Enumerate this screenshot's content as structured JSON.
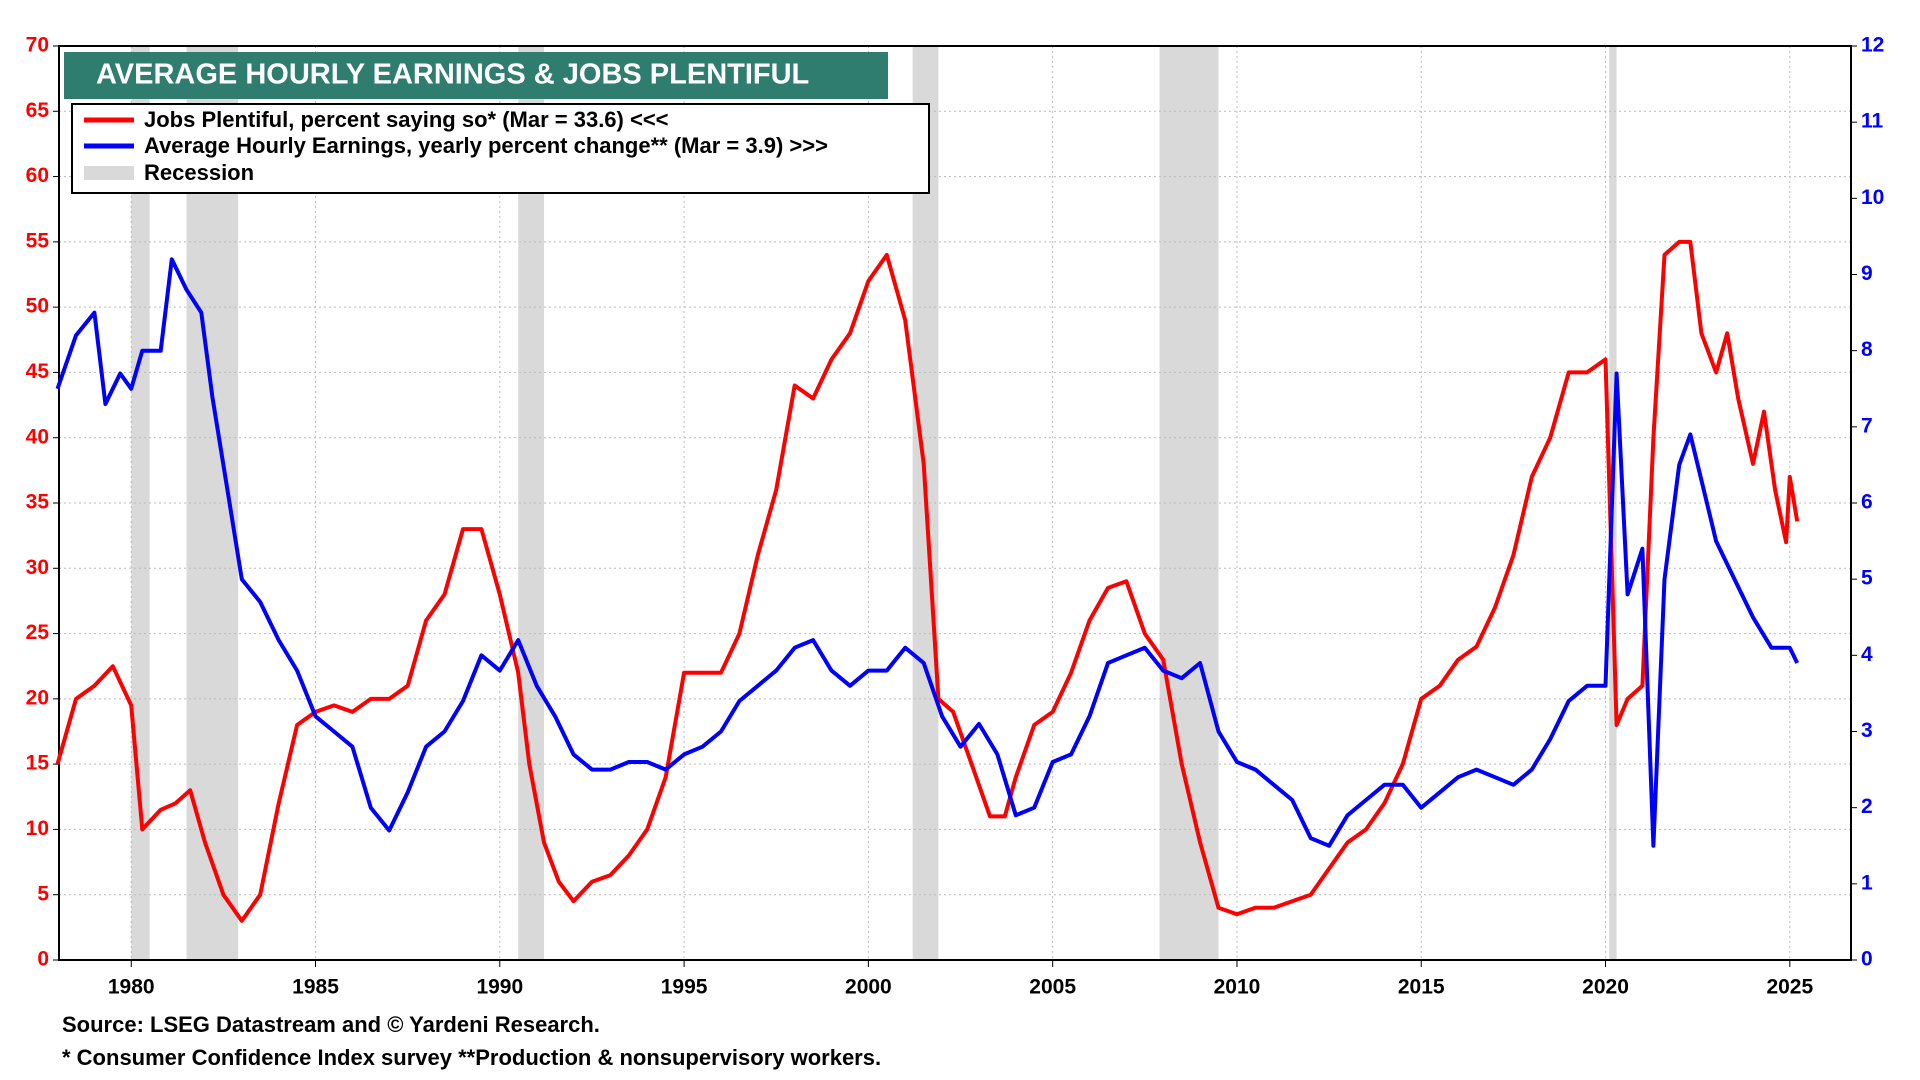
{
  "chart_data": {
    "type": "line",
    "title": "AVERAGE HOURLY EARNINGS & JOBS PLENTIFUL",
    "source": "Source: LSEG Datastream and © Yardeni Research.",
    "footnote": "* Consumer Confidence Index survey **Production & nonsupervisory workers.",
    "recession_label": "Recession",
    "recession_color": "#d9d9d9",
    "recessions": [
      [
        1980.0,
        1980.5
      ],
      [
        1981.5,
        1982.9
      ],
      [
        1990.5,
        1991.2
      ],
      [
        2001.2,
        2001.9
      ],
      [
        2007.9,
        2009.5
      ],
      [
        2020.1,
        2020.3
      ]
    ],
    "xlim": [
      1978.04,
      2026.66
    ],
    "xticks": [
      1980,
      1985,
      1990,
      1995,
      2000,
      2005,
      2010,
      2015,
      2020,
      2025
    ],
    "ylim": [
      0,
      70
    ],
    "yticks": [
      0,
      5,
      10,
      15,
      20,
      25,
      30,
      35,
      40,
      45,
      50,
      55,
      60,
      65,
      70
    ],
    "y2lim": [
      0,
      12
    ],
    "y2ticks": [
      0,
      1,
      2,
      3,
      4,
      5,
      6,
      7,
      8,
      9,
      10,
      11,
      12
    ],
    "grid": true,
    "legend": "upper left",
    "series": [
      {
        "name": "Jobs Plentiful, percent saying so* (Mar = 33.6) <<<",
        "color": "#ff0000",
        "axis": "y",
        "x": [
          1978.0,
          1978.5,
          1979.0,
          1979.5,
          1980.0,
          1980.3,
          1980.8,
          1981.2,
          1981.6,
          1982.0,
          1982.5,
          1983.0,
          1983.5,
          1984.0,
          1984.5,
          1985.0,
          1985.5,
          1986.0,
          1986.5,
          1987.0,
          1987.5,
          1988.0,
          1988.5,
          1989.0,
          1989.5,
          1990.0,
          1990.5,
          1990.8,
          1991.2,
          1991.6,
          1992.0,
          1992.5,
          1993.0,
          1993.5,
          1994.0,
          1994.5,
          1995.0,
          1995.5,
          1996.0,
          1996.5,
          1997.0,
          1997.5,
          1998.0,
          1998.5,
          1999.0,
          1999.5,
          2000.0,
          2000.5,
          2001.0,
          2001.5,
          2001.9,
          2002.3,
          2002.8,
          2003.3,
          2003.7,
          2004.0,
          2004.5,
          2005.0,
          2005.5,
          2006.0,
          2006.5,
          2007.0,
          2007.5,
          2008.0,
          2008.5,
          2009.0,
          2009.5,
          2010.0,
          2010.5,
          2011.0,
          2011.5,
          2012.0,
          2012.5,
          2013.0,
          2013.5,
          2014.0,
          2014.5,
          2015.0,
          2015.5,
          2016.0,
          2016.5,
          2017.0,
          2017.5,
          2018.0,
          2018.5,
          2019.0,
          2019.5,
          2020.0,
          2020.3,
          2020.6,
          2021.0,
          2021.3,
          2021.6,
          2022.0,
          2022.3,
          2022.6,
          2023.0,
          2023.3,
          2023.6,
          2024.0,
          2024.3,
          2024.6,
          2024.9,
          2025.0,
          2025.2
        ],
        "values": [
          15,
          20,
          21,
          22.5,
          19.5,
          10,
          11.5,
          12,
          13,
          9,
          5,
          3,
          5,
          12,
          18,
          19,
          19.5,
          19,
          20,
          20,
          21,
          26,
          28,
          33,
          33,
          28,
          22,
          15,
          9,
          6,
          4.5,
          6,
          6.5,
          8,
          10,
          14,
          22,
          22,
          22,
          25,
          31,
          36,
          44,
          43,
          46,
          48,
          52,
          54,
          49,
          38,
          20,
          19,
          15,
          11,
          11,
          14,
          18,
          19,
          22,
          26,
          28.5,
          29,
          25,
          23,
          15,
          9,
          4,
          3.5,
          4,
          4,
          4.5,
          5,
          7,
          9,
          10,
          12,
          15,
          20,
          21,
          23,
          24,
          27,
          31,
          37,
          40,
          45,
          45,
          46,
          18,
          20,
          21,
          40,
          54,
          55,
          55,
          48,
          45,
          48,
          43,
          38,
          42,
          36,
          32,
          37,
          33.6
        ]
      },
      {
        "name": "Average Hourly Earnings, yearly percent change** (Mar = 3.9) >>>",
        "color": "#0000ff",
        "axis": "y2",
        "x": [
          1978.0,
          1978.5,
          1979.0,
          1979.3,
          1979.7,
          1980.0,
          1980.3,
          1980.8,
          1981.1,
          1981.5,
          1981.9,
          1982.2,
          1982.6,
          1983.0,
          1983.5,
          1984.0,
          1984.5,
          1985.0,
          1985.5,
          1986.0,
          1986.5,
          1987.0,
          1987.5,
          1988.0,
          1988.5,
          1989.0,
          1989.5,
          1990.0,
          1990.5,
          1991.0,
          1991.5,
          1992.0,
          1992.5,
          1993.0,
          1993.5,
          1994.0,
          1994.5,
          1995.0,
          1995.5,
          1996.0,
          1996.5,
          1997.0,
          1997.5,
          1998.0,
          1998.5,
          1999.0,
          1999.5,
          2000.0,
          2000.5,
          2001.0,
          2001.5,
          2002.0,
          2002.5,
          2003.0,
          2003.5,
          2004.0,
          2004.5,
          2005.0,
          2005.5,
          2006.0,
          2006.5,
          2007.0,
          2007.5,
          2008.0,
          2008.5,
          2009.0,
          2009.5,
          2010.0,
          2010.5,
          2011.0,
          2011.5,
          2012.0,
          2012.5,
          2013.0,
          2013.5,
          2014.0,
          2014.5,
          2015.0,
          2015.5,
          2016.0,
          2016.5,
          2017.0,
          2017.5,
          2018.0,
          2018.5,
          2019.0,
          2019.5,
          2020.0,
          2020.3,
          2020.6,
          2021.0,
          2021.3,
          2021.6,
          2022.0,
          2022.3,
          2022.6,
          2023.0,
          2023.5,
          2024.0,
          2024.5,
          2025.0,
          2025.2
        ],
        "values": [
          7.5,
          8.2,
          8.5,
          7.3,
          7.7,
          7.5,
          8.0,
          8.0,
          9.2,
          8.8,
          8.5,
          7.4,
          6.2,
          5.0,
          4.7,
          4.2,
          3.8,
          3.2,
          3.0,
          2.8,
          2.0,
          1.7,
          2.2,
          2.8,
          3.0,
          3.4,
          4.0,
          3.8,
          4.2,
          3.6,
          3.2,
          2.7,
          2.5,
          2.5,
          2.6,
          2.6,
          2.5,
          2.7,
          2.8,
          3.0,
          3.4,
          3.6,
          3.8,
          4.1,
          4.2,
          3.8,
          3.6,
          3.8,
          3.8,
          4.1,
          3.9,
          3.2,
          2.8,
          3.1,
          2.7,
          1.9,
          2.0,
          2.6,
          2.7,
          3.2,
          3.9,
          4.0,
          4.1,
          3.8,
          3.7,
          3.9,
          3.0,
          2.6,
          2.5,
          2.3,
          2.1,
          1.6,
          1.5,
          1.9,
          2.1,
          2.3,
          2.3,
          2.0,
          2.2,
          2.4,
          2.5,
          2.4,
          2.3,
          2.5,
          2.9,
          3.4,
          3.6,
          3.6,
          7.7,
          4.8,
          5.4,
          1.5,
          5.0,
          6.5,
          6.9,
          6.3,
          5.5,
          5.0,
          4.5,
          4.1,
          4.1,
          3.9
        ]
      }
    ]
  }
}
